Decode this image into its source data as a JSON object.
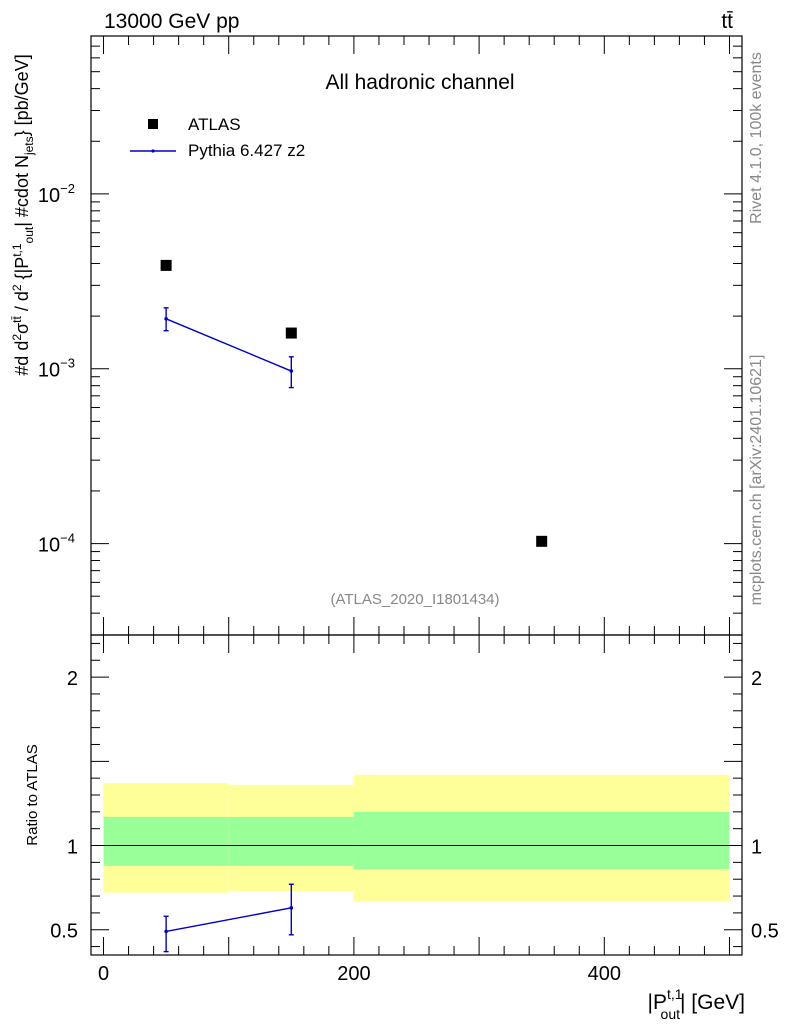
{
  "header": {
    "energy_label": "13000 GeV pp",
    "process_label": "tt̄"
  },
  "side_labels": {
    "rivet": "Rivet 4.1.0,  100k events",
    "mcplots": "mcplots.cern.ch [arXiv:2401.10621]"
  },
  "chart_data": [
    {
      "type": "scatter",
      "panel": "main",
      "title": "All hadronic channel",
      "analysis_label": "(ATLAS_2020_I1801434)",
      "ylabel": "#d d²σ^{tt̄} / d² {|P_out^{t,1}| #cdot N_jets} [pb/GeV]",
      "yscale": "log",
      "xlim": [
        -10,
        510
      ],
      "ylim": [
        3e-05,
        0.08
      ],
      "y_ticks": [
        {
          "value": 0.01,
          "mantissa": "10",
          "exponent": "−2"
        },
        {
          "value": 0.001,
          "mantissa": "10",
          "exponent": "−3"
        },
        {
          "value": 0.0001,
          "mantissa": "10",
          "exponent": "−4"
        }
      ],
      "legend_position": "top-left",
      "series": [
        {
          "name": "ATLAS",
          "style": "square-marker",
          "color": "#000000",
          "x": [
            50,
            150,
            350
          ],
          "y": [
            0.0039,
            0.0016,
            0.000103
          ]
        },
        {
          "name": "Pythia 6.427 z2",
          "style": "line-errorbars",
          "color": "#0000cc",
          "x": [
            50,
            150
          ],
          "y": [
            0.00193,
            0.00097
          ],
          "yerr_low": [
            0.00165,
            0.00078
          ],
          "yerr_high": [
            0.00223,
            0.00117
          ]
        }
      ]
    },
    {
      "type": "line",
      "panel": "ratio",
      "ylabel": "Ratio to ATLAS",
      "xlabel_main": "|P",
      "xlabel_sup": "t,1",
      "xlabel_sub": "out",
      "xlabel_tail": "| [GeV]",
      "xlim": [
        -10,
        510
      ],
      "ylim": [
        0.35,
        2.25
      ],
      "x_ticks": [
        0,
        200,
        400
      ],
      "y_ticks": [
        0.5,
        1,
        2
      ],
      "reference_line": 1,
      "bins": [
        {
          "x0": 0,
          "x1": 100,
          "inner": [
            0.88,
            1.17
          ],
          "outer": [
            0.72,
            1.37
          ]
        },
        {
          "x0": 100,
          "x1": 200,
          "inner": [
            0.88,
            1.17
          ],
          "outer": [
            0.73,
            1.36
          ]
        },
        {
          "x0": 200,
          "x1": 500,
          "inner": [
            0.86,
            1.2
          ],
          "outer": [
            0.67,
            1.42
          ]
        }
      ],
      "band_colors": {
        "inner": "#99ff99",
        "outer": "#ffff99"
      },
      "series": [
        {
          "name": "Pythia 6.427 z2",
          "color": "#0000cc",
          "x": [
            50,
            150
          ],
          "y": [
            0.49,
            0.63
          ],
          "yerr_low": [
            0.37,
            0.47
          ],
          "yerr_high": [
            0.58,
            0.77
          ]
        }
      ]
    }
  ]
}
